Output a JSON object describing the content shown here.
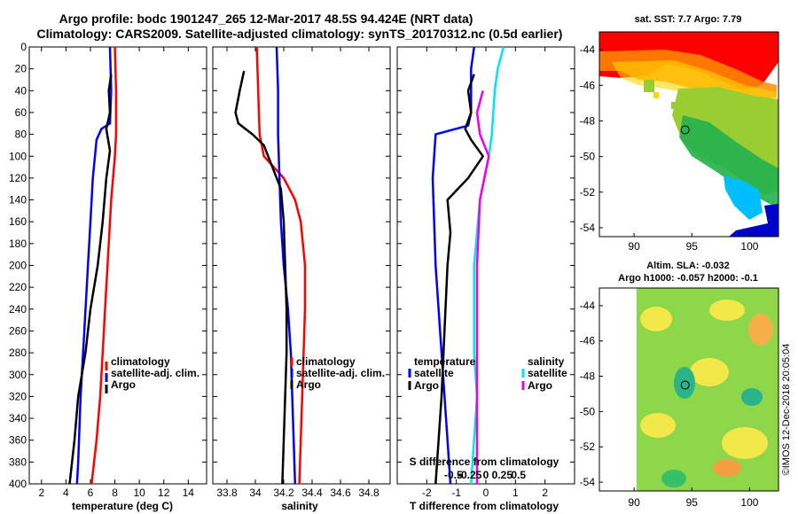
{
  "header": {
    "title_line1": "Argo profile: bodc 1901247_265 12-Mar-2017 48.5S 94.424E (NRT data)",
    "title_line2": "Climatology: CARS2009. Satellite-adjusted climatology: synTS_20170312.nc (0.5d earlier)"
  },
  "depth_ticks": [
    "0",
    "20",
    "40",
    "60",
    "80",
    "100",
    "120",
    "140",
    "160",
    "180",
    "200",
    "220",
    "240",
    "260",
    "280",
    "300",
    "320",
    "340",
    "360",
    "380",
    "400"
  ],
  "colors": {
    "climatology": "#ff0000",
    "satellite": "#0000ff",
    "argo": "#000000",
    "sal_satellite": "#00e5ee",
    "sal_argo": "#ee00ee"
  },
  "chart_data": [
    {
      "type": "line",
      "id": "temperature",
      "xlabel": "temperature (deg C)",
      "ylabel": "depth",
      "xlim": [
        1,
        15.5
      ],
      "ylim": [
        400,
        0
      ],
      "x_ticks": [
        2,
        4,
        6,
        8,
        10,
        12,
        14
      ],
      "x_tick_labels": [
        "2",
        "4",
        "6",
        "8",
        "10",
        "12",
        "14"
      ],
      "legend": [
        "climatology",
        "satellite-adj. clim.",
        "Argo"
      ],
      "series": [
        {
          "name": "climatology",
          "color": "#ff0000",
          "points": [
            [
              8.0,
              0
            ],
            [
              8.1,
              40
            ],
            [
              8.1,
              80
            ],
            [
              8.0,
              100
            ],
            [
              7.7,
              140
            ],
            [
              7.4,
              200
            ],
            [
              7.2,
              240
            ],
            [
              7.0,
              280
            ],
            [
              6.8,
              320
            ],
            [
              6.5,
              360
            ],
            [
              6.1,
              400
            ]
          ]
        },
        {
          "name": "satellite-adj. clim.",
          "color": "#0000ff",
          "points": [
            [
              7.6,
              0
            ],
            [
              7.7,
              40
            ],
            [
              7.6,
              70
            ],
            [
              6.9,
              75
            ],
            [
              6.5,
              85
            ],
            [
              6.2,
              120
            ],
            [
              6.0,
              160
            ],
            [
              5.8,
              200
            ],
            [
              5.5,
              260
            ],
            [
              5.2,
              320
            ],
            [
              5.0,
              380
            ],
            [
              4.9,
              400
            ]
          ]
        },
        {
          "name": "Argo",
          "color": "#000000",
          "points": [
            [
              7.7,
              25
            ],
            [
              7.5,
              40
            ],
            [
              7.6,
              60
            ],
            [
              7.3,
              75
            ],
            [
              7.6,
              95
            ],
            [
              7.3,
              120
            ],
            [
              7.0,
              160
            ],
            [
              6.6,
              200
            ],
            [
              6.0,
              240
            ],
            [
              5.6,
              280
            ],
            [
              5.0,
              320
            ],
            [
              4.7,
              360
            ],
            [
              4.3,
              400
            ]
          ]
        }
      ]
    },
    {
      "type": "line",
      "id": "salinity",
      "xlabel": "salinity",
      "ylabel": "depth",
      "xlim": [
        33.7,
        34.95
      ],
      "ylim": [
        400,
        0
      ],
      "x_ticks": [
        33.8,
        34.0,
        34.2,
        34.4,
        34.6,
        34.8
      ],
      "x_tick_labels": [
        "33.8",
        "34",
        "34.2",
        "34.4",
        "34.6",
        "34.8"
      ],
      "legend": [
        "climatology",
        "satellite-adj. clim.",
        "Argo"
      ],
      "series": [
        {
          "name": "climatology",
          "color": "#ff0000",
          "points": [
            [
              34.01,
              0
            ],
            [
              34.02,
              40
            ],
            [
              34.03,
              80
            ],
            [
              34.06,
              100
            ],
            [
              34.2,
              120
            ],
            [
              34.28,
              140
            ],
            [
              34.32,
              160
            ],
            [
              34.35,
              200
            ],
            [
              34.35,
              240
            ],
            [
              34.34,
              280
            ],
            [
              34.33,
              320
            ],
            [
              34.32,
              360
            ],
            [
              34.31,
              400
            ]
          ]
        },
        {
          "name": "satellite-adj. clim.",
          "color": "#0000ff",
          "points": [
            [
              34.15,
              0
            ],
            [
              34.16,
              40
            ],
            [
              34.16,
              80
            ],
            [
              34.17,
              120
            ],
            [
              34.18,
              160
            ],
            [
              34.2,
              200
            ],
            [
              34.23,
              240
            ],
            [
              34.25,
              280
            ],
            [
              34.26,
              320
            ],
            [
              34.27,
              360
            ],
            [
              34.28,
              400
            ]
          ]
        },
        {
          "name": "Argo",
          "color": "#000000",
          "points": [
            [
              33.92,
              22
            ],
            [
              33.89,
              40
            ],
            [
              33.86,
              60
            ],
            [
              33.88,
              70
            ],
            [
              33.98,
              80
            ],
            [
              34.06,
              90
            ],
            [
              34.12,
              110
            ],
            [
              34.18,
              130
            ],
            [
              34.2,
              160
            ],
            [
              34.21,
              200
            ],
            [
              34.22,
              240
            ],
            [
              34.22,
              280
            ],
            [
              34.21,
              320
            ],
            [
              34.2,
              360
            ],
            [
              34.19,
              400
            ]
          ]
        }
      ]
    },
    {
      "type": "line",
      "id": "difference",
      "xlabel": "T difference from climatology",
      "xlim": [
        -3,
        3
      ],
      "ylim": [
        400,
        0
      ],
      "x_ticks": [
        -2,
        -1,
        0,
        1,
        2
      ],
      "x_tick_labels": [
        "-2",
        "-1",
        "0",
        "1",
        "2"
      ],
      "s_axis_label": "S difference from climatology",
      "s_tick_labels": [
        "-0.5",
        "-0.25",
        "0",
        "0.25",
        "0.5"
      ],
      "legend_temperature_title": "temperature",
      "legend_salinity_title": "salinity",
      "legend": [
        "satellite",
        "Argo",
        "satellite",
        "Argo"
      ],
      "series": [
        {
          "name": "T satellite",
          "color": "#0000ff",
          "points": [
            [
              -0.4,
              0
            ],
            [
              -0.5,
              20
            ],
            [
              -0.5,
              60
            ],
            [
              -0.6,
              72
            ],
            [
              -1.7,
              80
            ],
            [
              -1.8,
              120
            ],
            [
              -1.7,
              200
            ],
            [
              -1.5,
              280
            ],
            [
              -1.3,
              360
            ],
            [
              -1.2,
              400
            ]
          ]
        },
        {
          "name": "T Argo",
          "color": "#000000",
          "points": [
            [
              -0.4,
              25
            ],
            [
              -0.6,
              40
            ],
            [
              -0.5,
              60
            ],
            [
              -0.7,
              75
            ],
            [
              -0.5,
              85
            ],
            [
              -0.1,
              100
            ],
            [
              -0.6,
              120
            ],
            [
              -1.3,
              140
            ],
            [
              -1.2,
              170
            ],
            [
              -1.3,
              200
            ],
            [
              -1.4,
              260
            ],
            [
              -1.5,
              320
            ],
            [
              -1.7,
              400
            ]
          ]
        },
        {
          "name": "S satellite",
          "color": "#00e5ee",
          "points": [
            [
              0.6,
              0
            ],
            [
              0.4,
              20
            ],
            [
              0.3,
              40
            ],
            [
              0.2,
              80
            ],
            [
              0.1,
              100
            ],
            [
              -0.2,
              140
            ],
            [
              -0.4,
              200
            ],
            [
              -0.4,
              280
            ],
            [
              -0.3,
              320
            ],
            [
              -0.5,
              400
            ]
          ]
        },
        {
          "name": "S Argo",
          "color": "#ee00ee",
          "points": [
            [
              -0.1,
              40
            ],
            [
              -0.3,
              60
            ],
            [
              -0.2,
              80
            ],
            [
              0.1,
              100
            ],
            [
              -0.2,
              140
            ],
            [
              -0.3,
              200
            ],
            [
              -0.3,
              280
            ],
            [
              -0.3,
              360
            ],
            [
              -0.3,
              400
            ]
          ]
        }
      ]
    },
    {
      "type": "heatmap",
      "id": "sst_map",
      "title": "sat. SST: 7.7 Argo: 7.79",
      "xlim": [
        87,
        102.5
      ],
      "ylim": [
        -54.5,
        -43
      ],
      "x_ticks": [
        90,
        95,
        100
      ],
      "x_tick_labels": [
        "90",
        "95",
        "100"
      ],
      "y_ticks": [
        -44,
        -46,
        -48,
        -50,
        -52,
        -54
      ],
      "y_tick_labels": [
        "-44",
        "-46",
        "-48",
        "-50",
        "-52",
        "-54"
      ],
      "marker": [
        94.42,
        -48.5
      ]
    },
    {
      "type": "heatmap",
      "id": "sla_map",
      "title_line1": "Altim. SLA: -0.032",
      "title_line2": "Argo h1000: -0.057 h2000: -0.1",
      "xlim": [
        87,
        102.5
      ],
      "ylim": [
        -54.5,
        -43
      ],
      "x_ticks": [
        90,
        95,
        100
      ],
      "x_tick_labels": [
        "90",
        "95",
        "100"
      ],
      "y_ticks": [
        -44,
        -46,
        -48,
        -50,
        -52,
        -54
      ],
      "y_tick_labels": [
        "-44",
        "-46",
        "-48",
        "-50",
        "-52",
        "-54"
      ],
      "marker": [
        94.42,
        -48.5
      ]
    }
  ],
  "footer": {
    "credit": "©IMOS 12-Dec-2018 20:05:04"
  }
}
